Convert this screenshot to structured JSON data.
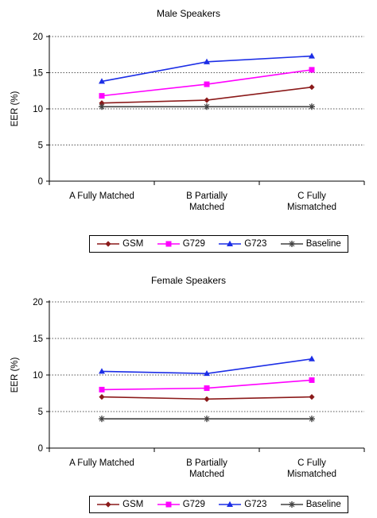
{
  "charts": [
    {
      "title": "Male Speakers",
      "ylabel": "EER (%)",
      "categories": [
        "A Fully Matched",
        "B Partially\nMatched",
        "C Fully\nMismatched"
      ],
      "yticks": [
        0,
        5,
        10,
        15,
        20
      ],
      "legend": [
        "GSM",
        "G729",
        "G723",
        "Baseline"
      ]
    },
    {
      "title": "Female Speakers",
      "ylabel": "EER (%)",
      "categories": [
        "A Fully Matched",
        "B Partially\nMatched",
        "C Fully\nMismatched"
      ],
      "yticks": [
        0,
        5,
        10,
        15,
        20
      ],
      "legend": [
        "GSM",
        "G729",
        "G723",
        "Baseline"
      ]
    }
  ],
  "chart_data": [
    {
      "type": "line",
      "title": "Male Speakers",
      "xlabel": "",
      "ylabel": "EER (%)",
      "categories": [
        "A Fully Matched",
        "B Partially Matched",
        "C Fully Mismatched"
      ],
      "ylim": [
        0,
        20
      ],
      "grid": "horizontal dotted",
      "legend_position": "bottom",
      "series": [
        {
          "name": "GSM",
          "values": [
            10.8,
            11.2,
            13.0
          ],
          "color": "#8b1a1a",
          "marker": "diamond"
        },
        {
          "name": "G729",
          "values": [
            11.8,
            13.4,
            15.4
          ],
          "color": "#ff00ff",
          "marker": "square"
        },
        {
          "name": "G723",
          "values": [
            13.8,
            16.5,
            17.3
          ],
          "color": "#1c2ee6",
          "marker": "triangle"
        },
        {
          "name": "Baseline",
          "values": [
            10.3,
            10.3,
            10.3
          ],
          "color": "#404040",
          "marker": "star"
        }
      ]
    },
    {
      "type": "line",
      "title": "Female Speakers",
      "xlabel": "",
      "ylabel": "EER (%)",
      "categories": [
        "A Fully Matched",
        "B Partially Matched",
        "C Fully Mismatched"
      ],
      "ylim": [
        0,
        20
      ],
      "grid": "horizontal dotted",
      "legend_position": "bottom",
      "series": [
        {
          "name": "GSM",
          "values": [
            7.0,
            6.7,
            7.0
          ],
          "color": "#8b1a1a",
          "marker": "diamond"
        },
        {
          "name": "G729",
          "values": [
            8.0,
            8.2,
            9.3
          ],
          "color": "#ff00ff",
          "marker": "square"
        },
        {
          "name": "G723",
          "values": [
            10.5,
            10.2,
            12.2
          ],
          "color": "#1c2ee6",
          "marker": "triangle"
        },
        {
          "name": "Baseline",
          "values": [
            4.0,
            4.0,
            4.0
          ],
          "color": "#404040",
          "marker": "star"
        }
      ]
    }
  ]
}
